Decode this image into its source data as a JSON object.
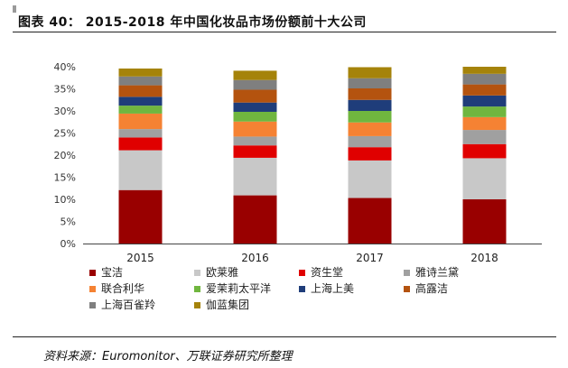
{
  "header": {
    "title": "图表 40： 2015-2018 年中国化妆品市场份额前十大公司"
  },
  "source": "资料来源：Euromonitor、万联证券研究所整理",
  "chart_data": {
    "type": "bar",
    "stacked": true,
    "categories": [
      "2015",
      "2016",
      "2017",
      "2018"
    ],
    "ylim": [
      0,
      40
    ],
    "yticks": [
      "0%",
      "5%",
      "10%",
      "15%",
      "20%",
      "25%",
      "30%",
      "35%",
      "40%"
    ],
    "grid": false,
    "legend_position": "bottom",
    "series": [
      {
        "name": "宝洁",
        "color": "#990000",
        "values": [
          12.1,
          10.9,
          10.3,
          10.0
        ]
      },
      {
        "name": "欧莱雅",
        "color": "#c8c8c8",
        "values": [
          9.0,
          8.5,
          8.5,
          9.3
        ]
      },
      {
        "name": "资生堂",
        "color": "#e00000",
        "values": [
          2.9,
          2.8,
          3.0,
          3.2
        ]
      },
      {
        "name": "雅诗兰黛",
        "color": "#a0a0a0",
        "values": [
          1.9,
          2.0,
          2.5,
          3.2
        ]
      },
      {
        "name": "联合利华",
        "color": "#f58233",
        "values": [
          3.5,
          3.4,
          3.1,
          2.9
        ]
      },
      {
        "name": "爱茉莉太平洋",
        "color": "#70b63f",
        "values": [
          1.8,
          2.2,
          2.6,
          2.4
        ]
      },
      {
        "name": "上海上美",
        "color": "#1f3d7a",
        "values": [
          2.0,
          2.1,
          2.5,
          2.5
        ]
      },
      {
        "name": "高露洁",
        "color": "#b4530f",
        "values": [
          2.6,
          2.9,
          2.6,
          2.5
        ]
      },
      {
        "name": "上海百雀羚",
        "color": "#7f7f7f",
        "values": [
          2.0,
          2.2,
          2.3,
          2.4
        ]
      },
      {
        "name": "伽蓝集团",
        "color": "#a5830a",
        "values": [
          1.8,
          2.1,
          2.5,
          1.6
        ]
      }
    ]
  }
}
